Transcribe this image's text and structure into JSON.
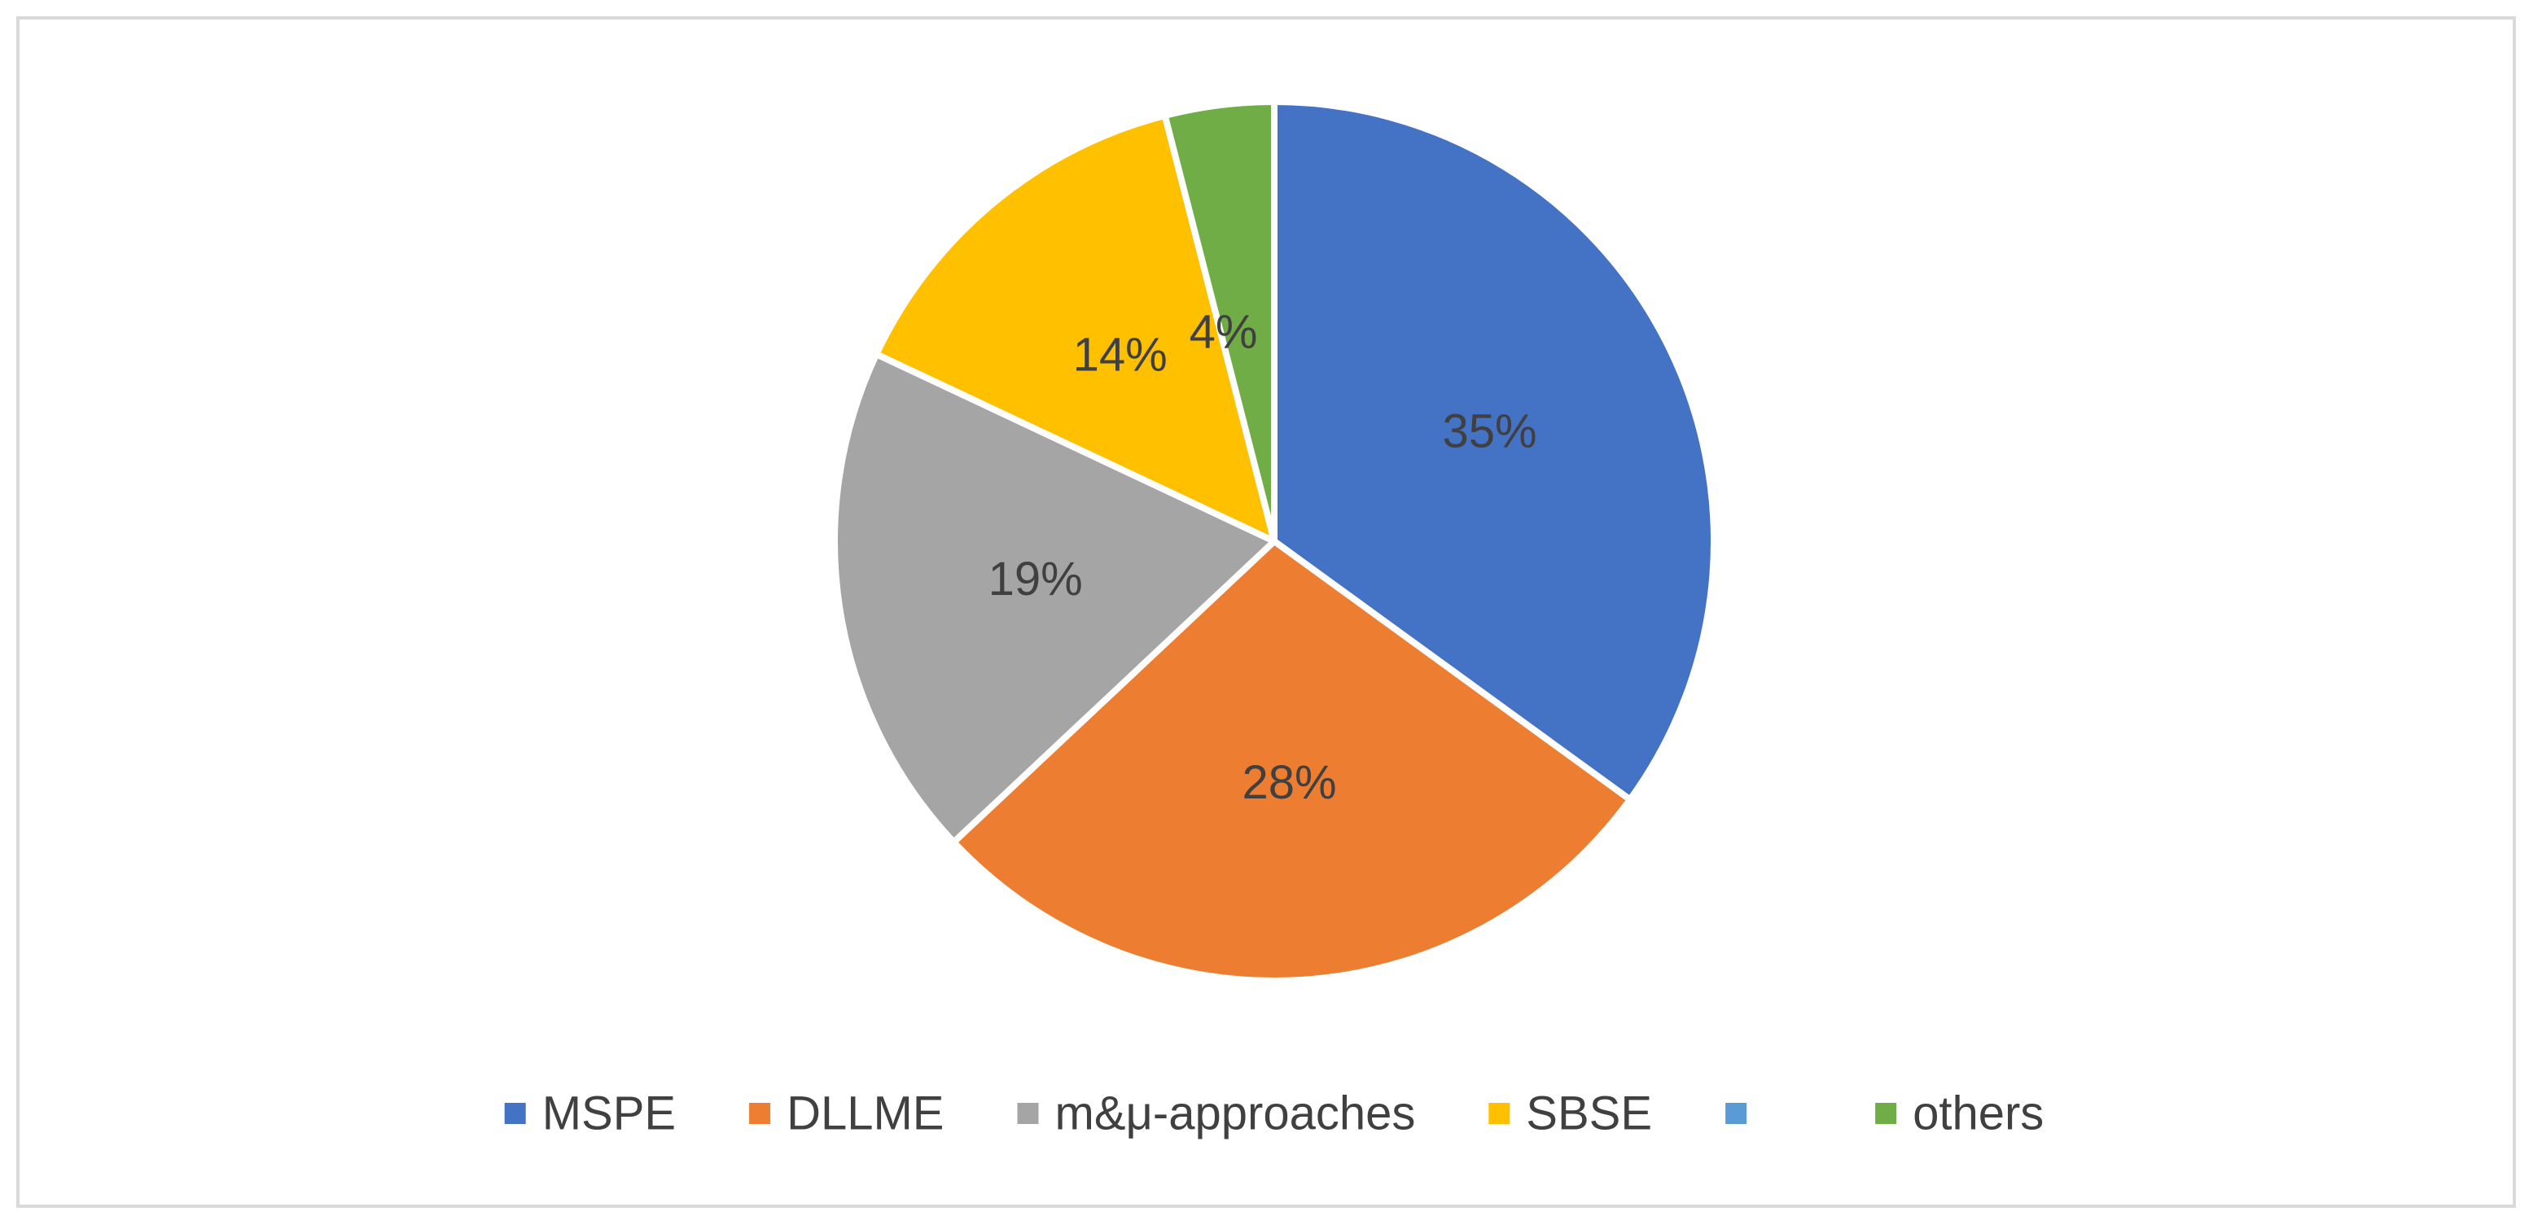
{
  "chart_data": {
    "type": "pie",
    "title": "",
    "categories": [
      "MSPE",
      "DLLME",
      "m&μ-approaches",
      "SBSE",
      "",
      "others"
    ],
    "values": [
      35,
      28,
      19,
      14,
      0,
      4
    ],
    "data_labels": [
      "35%",
      "28%",
      "19%",
      "14%",
      "",
      "4%"
    ],
    "colors": [
      "#4472C4",
      "#ED7D31",
      "#A5A5A5",
      "#FFC000",
      "#5B9BD5",
      "#70AD47"
    ],
    "legend_position": "bottom",
    "start_angle": "12 o'clock",
    "direction": "clockwise"
  }
}
